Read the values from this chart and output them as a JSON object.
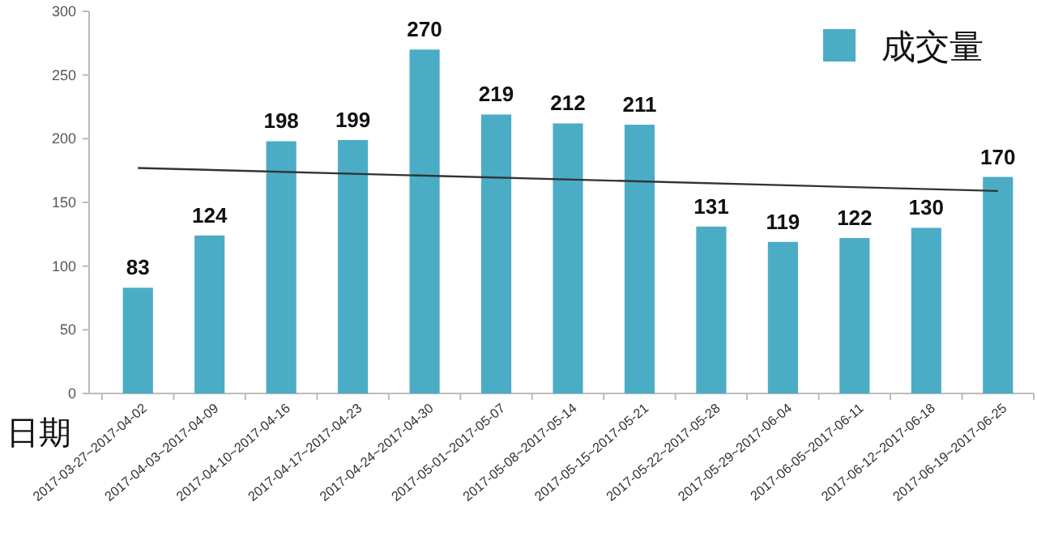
{
  "chart_data": {
    "type": "bar",
    "xlabel": "日期",
    "legend": "top right",
    "ylim": [
      0,
      300
    ],
    "yticks": [
      0,
      50,
      100,
      150,
      200,
      250,
      300
    ],
    "categories": [
      "2017-03-27~2017-04-02",
      "2017-04-03~2017-04-09",
      "2017-04-10~2017-04-16",
      "2017-04-17~2017-04-23",
      "2017-04-24~2017-04-30",
      "2017-05-01~2017-05-07",
      "2017-05-08~2017-05-14",
      "2017-05-15~2017-05-21",
      "2017-05-22~2017-05-28",
      "2017-05-29~2017-06-04",
      "2017-06-05~2017-06-11",
      "2017-06-12~2017-06-18",
      "2017-06-19~2017-06-25"
    ],
    "series": [
      {
        "name": "成交量",
        "color": "#4bacc6",
        "values": [
          83,
          124,
          198,
          199,
          270,
          219,
          212,
          211,
          131,
          119,
          122,
          130,
          170
        ],
        "value_labels": [
          "83",
          "124",
          "198",
          "199",
          "270",
          "219",
          "212",
          "211",
          "131",
          "119",
          "122",
          "130",
          "170"
        ]
      },
      {
        "type": "line",
        "color": "#333333",
        "x": [
          "2017-03-27~2017-04-02",
          "2017-06-19~2017-06-25"
        ],
        "values": [
          177,
          159
        ]
      }
    ]
  }
}
